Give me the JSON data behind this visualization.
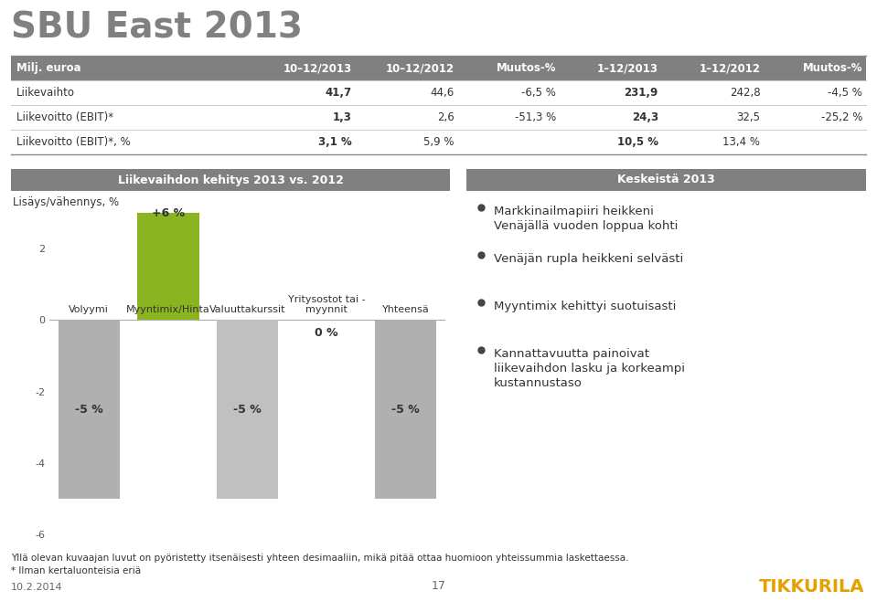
{
  "title": "SBU East 2013",
  "title_color": "#808080",
  "background_color": "#ffffff",
  "table_header": [
    "Milj. euroa",
    "10–12/2013",
    "10–12/2012",
    "Muutos-%",
    "1–12/2013",
    "1–12/2012",
    "Muutos-%"
  ],
  "table_rows": [
    [
      "Liikevaihto",
      "41,7",
      "44,6",
      "-6,5 %",
      "231,9",
      "242,8",
      "-4,5 %"
    ],
    [
      "Liikevoitto (EBIT)*",
      "1,3",
      "2,6",
      "-51,3 %",
      "24,3",
      "32,5",
      "-25,2 %"
    ],
    [
      "Liikevoitto (EBIT)*, %",
      "3,1 %",
      "5,9 %",
      "",
      "10,5 %",
      "13,4 %",
      ""
    ]
  ],
  "chart_title": "Liikevaihdon kehitys 2013 vs. 2012",
  "chart_title_bg": "#808080",
  "chart_title_color": "#ffffff",
  "right_title": "Keskeistä 2013",
  "right_title_bg": "#808080",
  "right_title_color": "#ffffff",
  "ylabel": "Lisäys/vähennys, %",
  "bar_categories": [
    "Volyymi",
    "Myyntimix/Hinta",
    "Valuuttakurssit",
    "Yritysostot tai -\nmyynnit",
    "Yhteensä"
  ],
  "bar_values": [
    -5,
    6,
    -5,
    0,
    -5
  ],
  "bar_colors": [
    "#b0b0b0",
    "#8ab520",
    "#c0c0c0",
    "#d8d8d8",
    "#b0b0b0"
  ],
  "bar_labels": [
    "-5 %",
    "+6 %",
    "-5 %",
    "0 %",
    "-5 %"
  ],
  "ylim": [
    -6,
    3
  ],
  "yticks": [
    -6,
    -4,
    -2,
    0,
    2
  ],
  "bullet_points": [
    "Markkinailmapiiri heikkeni\nVenäjällä vuoden loppua kohti",
    "Venäjän rupla heikkeni selvästi",
    "Myyntimix kehittyi suotuisasti",
    "Kannattavuutta painoivat\nliikevaihdon lasku ja korkeampi\nkustannustaso"
  ],
  "footer_text": "Yllä olevan kuvaajan luvut on pyöristetty itsenäisesti yhteen desimaaliin, mikä pitää ottaa huomioon yhteissummia laskettaessa.",
  "footer_note": "* Ilman kertaluonteisia eriä",
  "date_text": "10.2.2014",
  "page_num": "17",
  "tikkurila_color": "#e8a000"
}
